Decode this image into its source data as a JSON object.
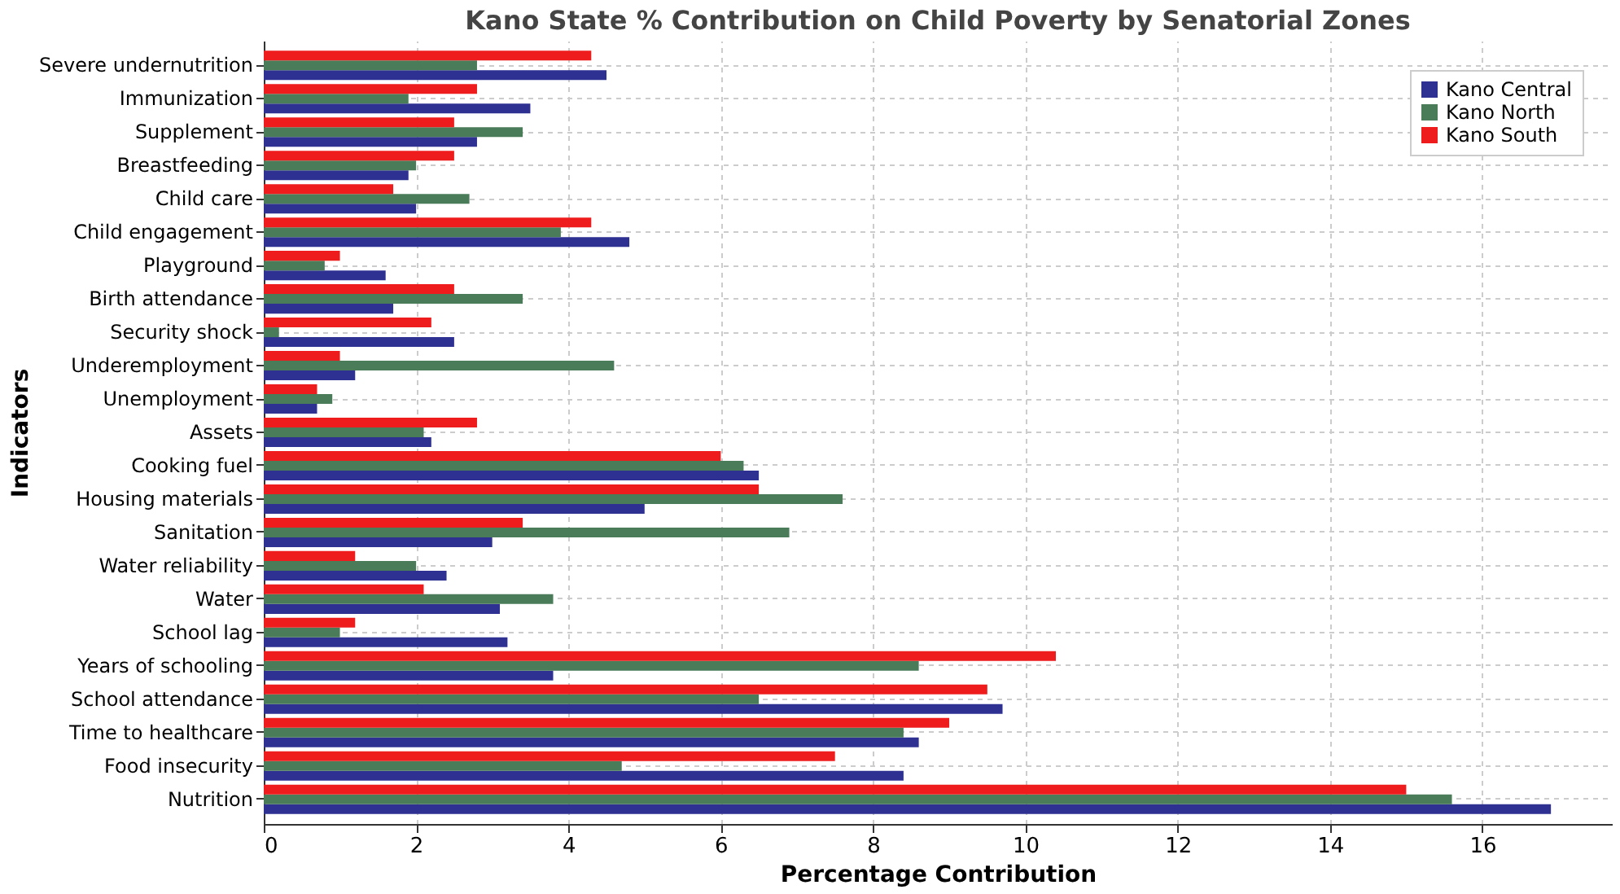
{
  "chart_data": {
    "type": "bar",
    "orientation": "horizontal",
    "title": "Kano State % Contribution on Child Poverty by Senatorial Zones",
    "xlabel": "Percentage Contribution",
    "ylabel": "Indicators",
    "categories": [
      "Severe undernutrition",
      "Immunization",
      "Supplement",
      "Breastfeeding",
      "Child care",
      "Child engagement",
      "Playground",
      "Birth attendance",
      "Security shock",
      "Underemployment",
      "Unemployment",
      "Assets",
      "Cooking fuel",
      "Housing materials",
      "Sanitation",
      "Water reliability",
      "Water",
      "School lag",
      "Years of schooling",
      "School attendance",
      "Time to healthcare",
      "Food insecurity",
      "Nutrition"
    ],
    "series": [
      {
        "name": "Kano Central",
        "color": "#2e3192",
        "values": [
          4.5,
          3.5,
          2.8,
          1.9,
          2.0,
          4.8,
          1.6,
          1.7,
          2.5,
          1.2,
          0.7,
          2.2,
          6.5,
          5.0,
          3.0,
          2.4,
          3.1,
          3.2,
          3.8,
          9.7,
          8.6,
          8.4,
          16.9
        ]
      },
      {
        "name": "Kano North",
        "color": "#4a7c59",
        "values": [
          2.8,
          1.9,
          3.4,
          2.0,
          2.7,
          3.9,
          0.8,
          3.4,
          0.2,
          4.6,
          0.9,
          2.1,
          6.3,
          7.6,
          6.9,
          2.0,
          3.8,
          1.0,
          8.6,
          6.5,
          8.4,
          4.7,
          15.6
        ]
      },
      {
        "name": "Kano South",
        "color": "#ee1c1c",
        "values": [
          4.3,
          2.8,
          2.5,
          2.5,
          1.7,
          4.3,
          1.0,
          2.5,
          2.2,
          1.0,
          0.7,
          2.8,
          6.0,
          6.5,
          3.4,
          1.2,
          2.1,
          1.2,
          10.4,
          9.5,
          9.0,
          7.5,
          15.0
        ]
      }
    ],
    "xlim": [
      0,
      17.7
    ],
    "xticks": [
      0,
      2,
      4,
      6,
      8,
      10,
      12,
      14,
      16
    ],
    "grid": true,
    "legend": "top right"
  }
}
